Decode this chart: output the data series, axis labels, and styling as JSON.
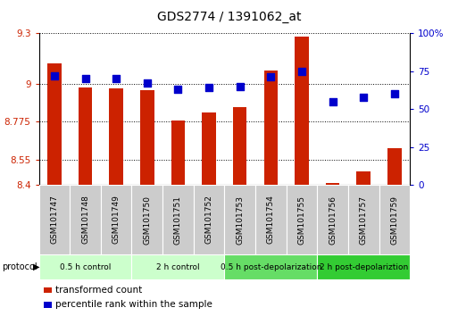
{
  "title": "GDS2774 / 1391062_at",
  "categories": [
    "GSM101747",
    "GSM101748",
    "GSM101749",
    "GSM101750",
    "GSM101751",
    "GSM101752",
    "GSM101753",
    "GSM101754",
    "GSM101755",
    "GSM101756",
    "GSM101757",
    "GSM101759"
  ],
  "red_values": [
    9.12,
    8.98,
    8.97,
    8.96,
    8.78,
    8.83,
    8.86,
    9.08,
    9.28,
    8.41,
    8.48,
    8.62
  ],
  "blue_values": [
    72,
    70,
    70,
    67,
    63,
    64,
    65,
    71,
    75,
    55,
    58,
    60
  ],
  "ymin": 8.4,
  "ymax": 9.3,
  "y_ticks": [
    8.4,
    8.55,
    8.775,
    9.0,
    9.3
  ],
  "y_tick_labels": [
    "8.4",
    "8.55",
    "8.775",
    "9",
    "9.3"
  ],
  "y2min": 0,
  "y2max": 100,
  "y2_ticks": [
    0,
    25,
    50,
    75,
    100
  ],
  "y2_tick_labels": [
    "0",
    "25",
    "50",
    "75",
    "100%"
  ],
  "bar_color": "#cc2200",
  "dot_color": "#0000cc",
  "bg_color": "#ffffff",
  "protocol_groups": [
    {
      "label": "0.5 h control",
      "start": 0,
      "end": 3,
      "color": "#ccffcc"
    },
    {
      "label": "2 h control",
      "start": 3,
      "end": 6,
      "color": "#ccffcc"
    },
    {
      "label": "0.5 h post-depolarization",
      "start": 6,
      "end": 9,
      "color": "#66dd66"
    },
    {
      "label": "2 h post-depolariztion",
      "start": 9,
      "end": 12,
      "color": "#33cc33"
    }
  ],
  "legend_red_label": "transformed count",
  "legend_blue_label": "percentile rank within the sample",
  "bar_width": 0.45,
  "dot_size": 28,
  "title_fontsize": 10,
  "axis_fontsize": 7.5,
  "label_fontsize": 6.5,
  "proto_fontsize": 6.5
}
